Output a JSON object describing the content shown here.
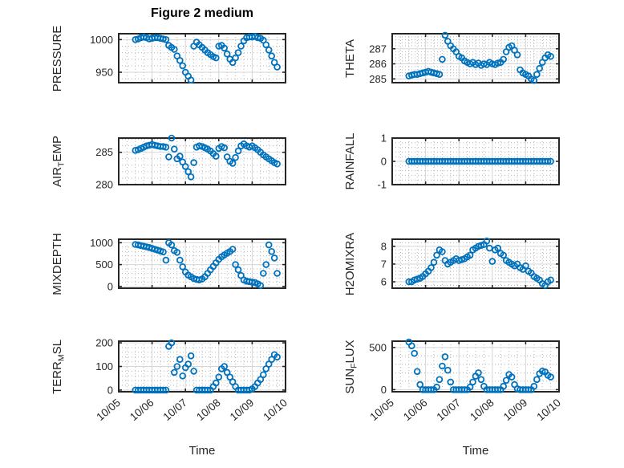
{
  "style": {
    "marker_color": "#0072BD",
    "axis_color": "#262626",
    "grid_color": "#d6d6d6",
    "minor_grid_color": "#b5b5b5",
    "background": "#ffffff",
    "marker_shape": "circle-open"
  },
  "chart_data": {
    "type": "scatter",
    "title": "Figure 2 medium",
    "xlabel": "Time",
    "legend": "none",
    "grid": "major-solid-minor-dotted",
    "x_range": [
      0,
      5
    ],
    "x_ticks": {
      "values": [
        0,
        1,
        2,
        3,
        4,
        5
      ],
      "labels": [
        "10/05",
        "10/06",
        "10/07",
        "10/08",
        "10/09",
        "10/10"
      ]
    },
    "x_unit": "days since 10/05 00:00",
    "x": [
      0.5,
      0.583,
      0.667,
      0.75,
      0.833,
      0.917,
      1,
      1.083,
      1.167,
      1.25,
      1.333,
      1.417,
      1.5,
      1.583,
      1.667,
      1.75,
      1.833,
      1.917,
      2,
      2.083,
      2.167,
      2.25,
      2.333,
      2.417,
      2.5,
      2.583,
      2.667,
      2.75,
      2.833,
      2.917,
      3,
      3.083,
      3.167,
      3.25,
      3.333,
      3.417,
      3.5,
      3.583,
      3.667,
      3.75,
      3.833,
      3.917,
      4,
      4.083,
      4.167,
      4.25,
      4.333,
      4.417,
      4.5,
      4.583,
      4.667,
      4.75
    ],
    "subplots": [
      {
        "name": "PRESSURE",
        "ylabel_pre": "PRESSURE",
        "ylabel_sub": "",
        "ylabel_post": "",
        "yticks": [
          950,
          1000
        ],
        "ylim": [
          934,
          1009
        ],
        "values": [
          1000,
          1001,
          1003,
          1004,
          1003,
          1001,
          1002,
          1003,
          1003,
          1002,
          1001,
          1000,
          991,
          988,
          985,
          975,
          968,
          960,
          950,
          944,
          938,
          990,
          996,
          992,
          988,
          984,
          980,
          977,
          974,
          972,
          990,
          991,
          987,
          978,
          970,
          965,
          972,
          980,
          990,
          998,
          1003,
          1004,
          1004,
          1005,
          1003,
          1002,
          999,
          992,
          984,
          975,
          965,
          958
        ]
      },
      {
        "name": "THETA",
        "ylabel_pre": "THETA",
        "ylabel_sub": "",
        "ylabel_post": "",
        "yticks": [
          285,
          286,
          287
        ],
        "ylim": [
          284.75,
          288
        ],
        "values": [
          285.2,
          285.25,
          285.3,
          285.3,
          285.35,
          285.4,
          285.45,
          285.5,
          285.45,
          285.4,
          285.35,
          285.3,
          286.3,
          287.9,
          287.5,
          287.2,
          287,
          286.8,
          286.5,
          286.4,
          286.2,
          286.1,
          286,
          286.1,
          285.95,
          286.05,
          285.9,
          286,
          285.95,
          286.1,
          286,
          285.95,
          286.05,
          286.1,
          286.3,
          286.8,
          287.1,
          287.2,
          286.9,
          286.6,
          285.6,
          285.4,
          285.3,
          285.2,
          285,
          284.9,
          285.3,
          285.7,
          286.1,
          286.4,
          286.6,
          286.5
        ]
      },
      {
        "name": "AIR_TEMP",
        "ylabel_pre": "AIR",
        "ylabel_sub": "T",
        "ylabel_post": "EMP",
        "yticks": [
          280,
          285
        ],
        "ylim": [
          280,
          287.2
        ],
        "values": [
          285.3,
          285.4,
          285.6,
          285.8,
          286,
          286.1,
          286.2,
          286.1,
          286,
          285.9,
          285.9,
          285.8,
          284.3,
          287.2,
          285.5,
          284,
          284.4,
          283.5,
          282.8,
          282,
          281.2,
          283.4,
          285.8,
          286,
          285.9,
          285.7,
          285.5,
          285.2,
          284.8,
          284.4,
          285.6,
          285.9,
          285.7,
          284.3,
          283.6,
          283.3,
          284.2,
          285.2,
          286,
          286.3,
          286,
          285.8,
          286,
          285.7,
          285.4,
          285,
          284.6,
          284.3,
          284,
          283.7,
          283.4,
          283.2
        ]
      },
      {
        "name": "RAINFALL",
        "ylabel_pre": "RAINFALL",
        "ylabel_sub": "",
        "ylabel_post": "",
        "yticks": [
          -1,
          0,
          1
        ],
        "ylim": [
          -1,
          1
        ],
        "values": [
          0,
          0,
          0,
          0,
          0,
          0,
          0,
          0,
          0,
          0,
          0,
          0,
          0,
          0,
          0,
          0,
          0,
          0,
          0,
          0,
          0,
          0,
          0,
          0,
          0,
          0,
          0,
          0,
          0,
          0,
          0,
          0,
          0,
          0,
          0,
          0,
          0,
          0,
          0,
          0,
          0,
          0,
          0,
          0,
          0,
          0,
          0,
          0,
          0,
          0,
          0,
          0
        ]
      },
      {
        "name": "MIXDEPTH",
        "ylabel_pre": "MIXDEPTH",
        "ylabel_sub": "",
        "ylabel_post": "",
        "yticks": [
          0,
          500,
          1000
        ],
        "ylim": [
          -40,
          1080
        ],
        "values": [
          960,
          950,
          935,
          920,
          905,
          890,
          870,
          850,
          830,
          810,
          790,
          600,
          1000,
          950,
          820,
          780,
          600,
          450,
          330,
          260,
          220,
          180,
          160,
          150,
          170,
          220,
          300,
          380,
          460,
          540,
          620,
          680,
          720,
          760,
          800,
          850,
          500,
          380,
          250,
          150,
          120,
          110,
          100,
          90,
          60,
          20,
          300,
          500,
          950,
          800,
          650,
          300
        ]
      },
      {
        "name": "H2OMIXRA",
        "ylabel_pre": "H2OMIXRA",
        "ylabel_sub": "",
        "ylabel_post": "",
        "yticks": [
          6,
          7,
          8
        ],
        "ylim": [
          5.64,
          8.4
        ],
        "values": [
          6,
          6,
          6.1,
          6.15,
          6.2,
          6.3,
          6.45,
          6.6,
          6.8,
          7.1,
          7.5,
          7.8,
          7.7,
          7.2,
          7,
          7.1,
          7.2,
          7.3,
          7.2,
          7.25,
          7.3,
          7.4,
          7.5,
          7.8,
          7.9,
          8,
          8.05,
          8.1,
          8.3,
          7.9,
          7.15,
          7.8,
          7.9,
          7.6,
          7.5,
          7.2,
          7.1,
          7,
          6.9,
          7,
          6.8,
          6.7,
          6.9,
          6.6,
          6.5,
          6.3,
          6.2,
          6.1,
          5.9,
          5.8,
          6,
          6.1
        ]
      },
      {
        "name": "TERR_MSL",
        "ylabel_pre": "TERR",
        "ylabel_sub": "M",
        "ylabel_post": "SL",
        "yticks": [
          0,
          100,
          200
        ],
        "ylim": [
          -7,
          207
        ],
        "values": [
          0,
          0,
          0,
          0,
          0,
          0,
          0,
          0,
          0,
          0,
          0,
          0,
          185,
          200,
          75,
          100,
          130,
          60,
          95,
          110,
          145,
          80,
          0,
          0,
          0,
          0,
          0,
          0,
          15,
          30,
          55,
          90,
          100,
          75,
          55,
          35,
          15,
          0,
          0,
          0,
          0,
          0,
          5,
          15,
          30,
          45,
          65,
          90,
          110,
          130,
          150,
          140
        ]
      },
      {
        "name": "SUN_FLUX",
        "ylabel_pre": "SUN",
        "ylabel_sub": "F",
        "ylabel_post": "LUX",
        "yticks": [
          0,
          500
        ],
        "ylim": [
          -25,
          575
        ],
        "values": [
          565,
          520,
          430,
          215,
          60,
          0,
          0,
          0,
          0,
          0,
          30,
          120,
          280,
          390,
          230,
          90,
          0,
          0,
          0,
          0,
          0,
          0,
          30,
          90,
          160,
          200,
          120,
          40,
          0,
          0,
          0,
          0,
          0,
          0,
          40,
          110,
          180,
          150,
          60,
          10,
          0,
          0,
          0,
          0,
          0,
          40,
          120,
          190,
          220,
          210,
          170,
          150
        ]
      }
    ]
  }
}
